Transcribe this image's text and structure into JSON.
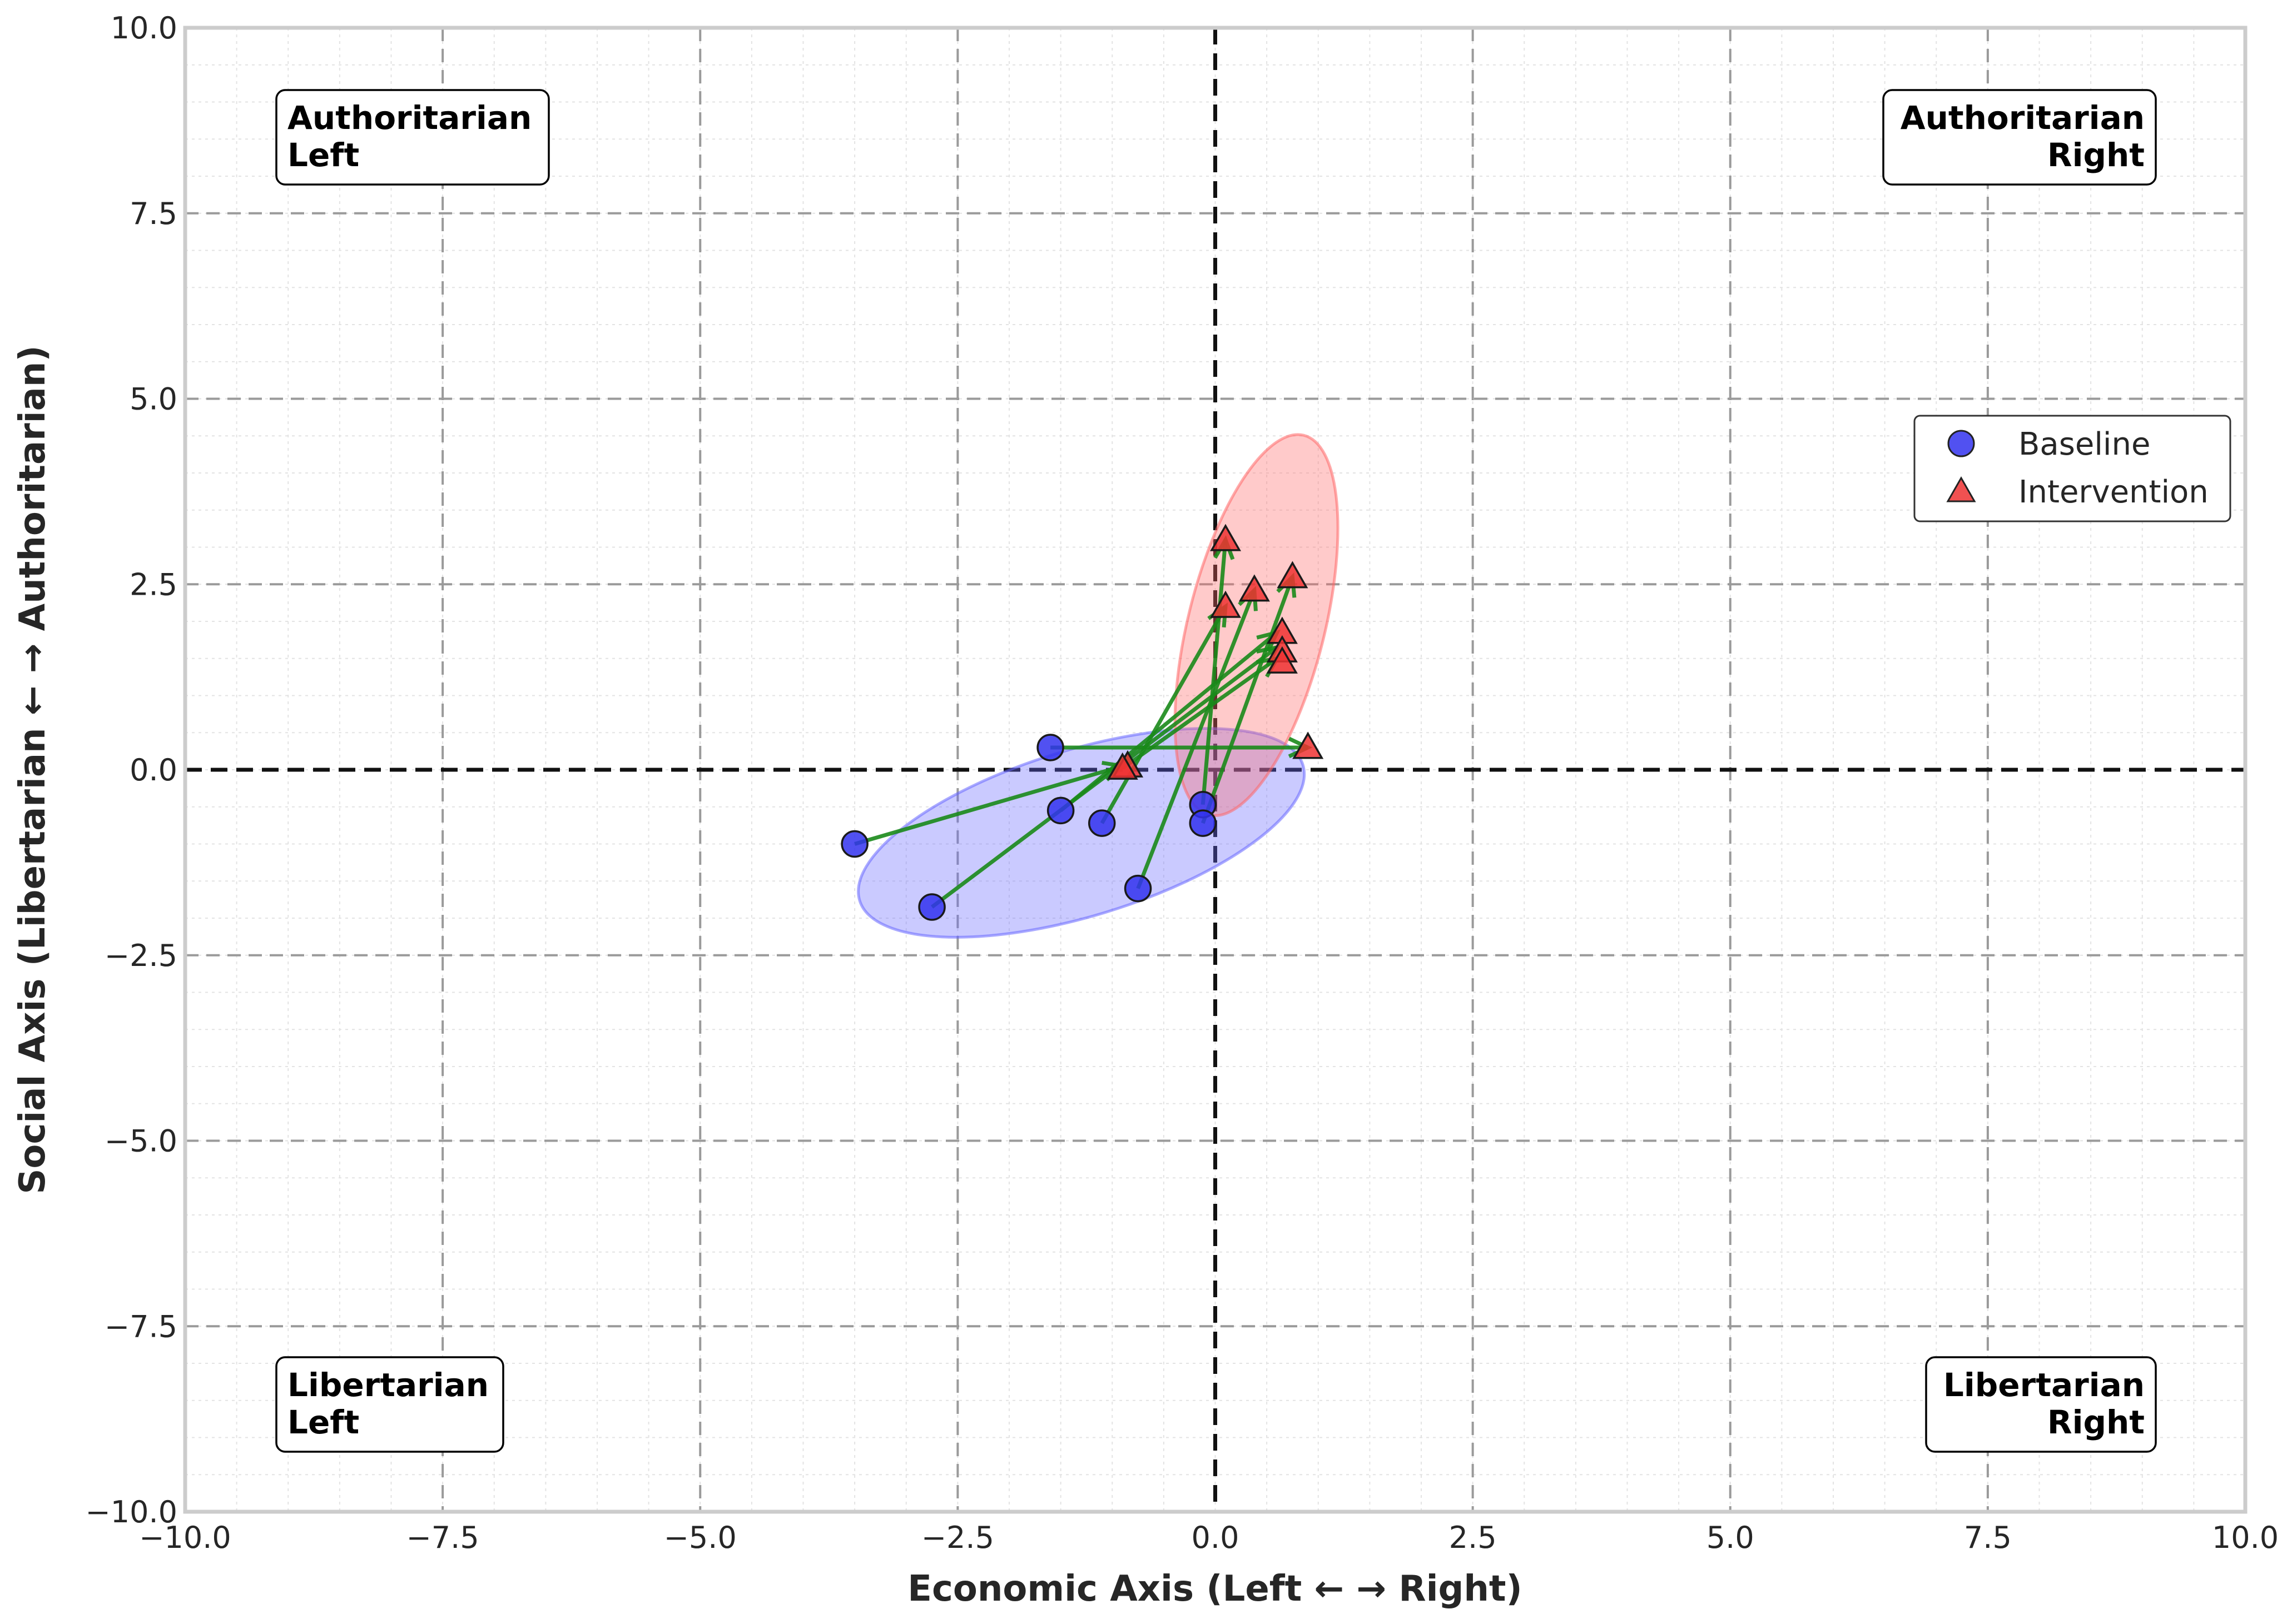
{
  "chart_data": {
    "type": "scatter",
    "xlabel": "Economic Axis (Left ← → Right)",
    "ylabel": "Social Axis (Libertarian ← → Authoritarian)",
    "xlim": [
      -10,
      10
    ],
    "ylim": [
      -10,
      10
    ],
    "xticks": [
      -10,
      -7.5,
      -5,
      -2.5,
      0,
      2.5,
      5,
      7.5,
      10
    ],
    "yticks": [
      -10,
      -7.5,
      -5,
      -2.5,
      0,
      2.5,
      5,
      7.5,
      10
    ],
    "xtick_labels": [
      "−10.0",
      "−7.5",
      "−5.0",
      "−2.5",
      "0.0",
      "2.5",
      "5.0",
      "7.5",
      "10.0"
    ],
    "ytick_labels": [
      "−10.0",
      "−7.5",
      "−5.0",
      "−2.5",
      "0.0",
      "2.5",
      "5.0",
      "7.5",
      "10.0"
    ],
    "grid": true,
    "quadrant_labels": [
      {
        "lines": [
          "Authoritarian",
          "Left"
        ],
        "position": "top-left"
      },
      {
        "lines": [
          "Authoritarian",
          "Right"
        ],
        "position": "top-right"
      },
      {
        "lines": [
          "Libertarian",
          "Left"
        ],
        "position": "bottom-left"
      },
      {
        "lines": [
          "Libertarian",
          "Right"
        ],
        "position": "bottom-right"
      }
    ],
    "legend": {
      "position": "right",
      "entries": [
        {
          "label": "Baseline",
          "marker": "circle",
          "color": "#3333ee"
        },
        {
          "label": "Intervention",
          "marker": "triangle",
          "color": "#ee3333"
        }
      ]
    },
    "series": [
      {
        "name": "Baseline",
        "marker": "circle",
        "color": "#3333ee",
        "points": [
          {
            "x": -1.6,
            "y": 0.3
          },
          {
            "x": -3.5,
            "y": -1.0
          },
          {
            "x": -2.75,
            "y": -1.85
          },
          {
            "x": -1.5,
            "y": -0.55
          },
          {
            "x": -1.1,
            "y": -0.72
          },
          {
            "x": -0.75,
            "y": -1.6
          },
          {
            "x": -0.12,
            "y": -0.47
          },
          {
            "x": -0.12,
            "y": -0.72
          }
        ]
      },
      {
        "name": "Intervention",
        "marker": "triangle",
        "color": "#ee3333",
        "points": [
          {
            "x": 0.9,
            "y": 0.3
          },
          {
            "x": -0.85,
            "y": 0.05
          },
          {
            "x": -0.9,
            "y": 0.02
          },
          {
            "x": 0.65,
            "y": 1.85
          },
          {
            "x": 0.65,
            "y": 1.6
          },
          {
            "x": 0.65,
            "y": 1.45
          },
          {
            "x": 0.1,
            "y": 3.1
          },
          {
            "x": 0.1,
            "y": 2.2
          },
          {
            "x": 0.38,
            "y": 2.42
          },
          {
            "x": 0.75,
            "y": 2.6
          }
        ]
      }
    ],
    "arrows": [
      {
        "from": [
          -1.6,
          0.3
        ],
        "to": [
          0.9,
          0.3
        ]
      },
      {
        "from": [
          -3.5,
          -1.0
        ],
        "to": [
          -0.9,
          0.05
        ]
      },
      {
        "from": [
          -2.75,
          -1.85
        ],
        "to": [
          0.6,
          1.65
        ]
      },
      {
        "from": [
          -1.5,
          -0.55
        ],
        "to": [
          0.6,
          1.85
        ]
      },
      {
        "from": [
          -1.1,
          -0.72
        ],
        "to": [
          0.1,
          2.2
        ]
      },
      {
        "from": [
          -0.75,
          -1.6
        ],
        "to": [
          0.38,
          2.42
        ]
      },
      {
        "from": [
          -0.12,
          -0.47
        ],
        "to": [
          0.1,
          3.1
        ]
      },
      {
        "from": [
          -0.12,
          -0.72
        ],
        "to": [
          0.75,
          2.6
        ]
      },
      {
        "from": [
          -0.9,
          0.02
        ],
        "to": [
          0.6,
          1.5
        ]
      }
    ],
    "confidence_ellipses": [
      {
        "series": "Baseline",
        "center": [
          -1.3,
          -0.85
        ],
        "semi_axes": [
          2.25,
          1.12
        ],
        "angle_deg": 17,
        "color": "#6666ff"
      },
      {
        "series": "Intervention",
        "center": [
          0.4,
          1.95
        ],
        "semi_axes": [
          1.9,
          0.92
        ],
        "angle_deg": 76,
        "color": "#ff6666"
      }
    ]
  }
}
